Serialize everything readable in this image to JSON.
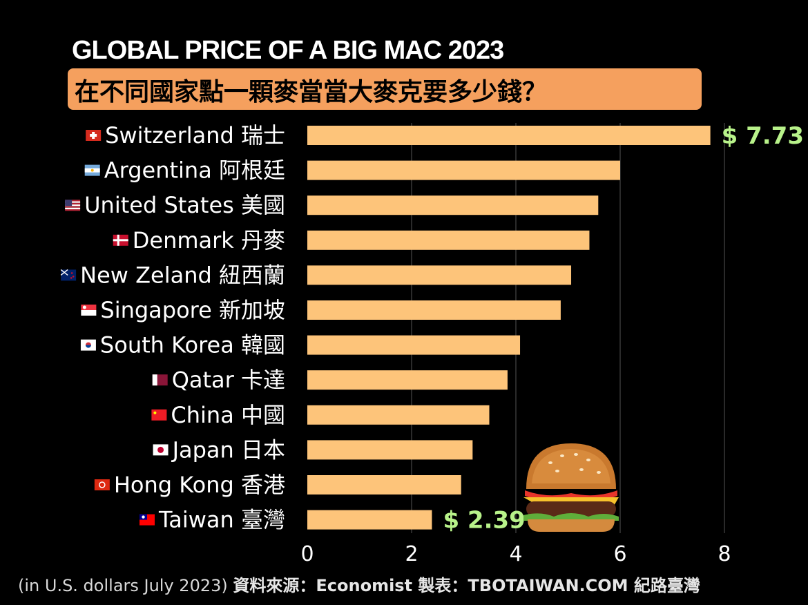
{
  "title": "GLOBAL PRICE OF A BIG MAC 2023",
  "subtitle": "在不同國家點一顆麥當當大麥克要多少錢？",
  "footer": {
    "note": "(in U.S. dollars July 2023)",
    "source": "資料來源：Economist  製表：TBOTAIWAN.COM 紀路臺灣"
  },
  "colors": {
    "bar": "#fdc47a",
    "label_value": "#b8f28a",
    "subtitle_bg": "#f5a05e",
    "grid": "#555555"
  },
  "chart_data": {
    "type": "bar",
    "orientation": "horizontal",
    "categories": [
      "Switzerland 瑞士",
      "Argentina 阿根廷",
      "United States 美國",
      "Denmark 丹麥",
      "New Zeland 紐西蘭",
      "Singapore 新加坡",
      "South Korea 韓國",
      "Qatar 卡達",
      "China 中國",
      "Japan 日本",
      "Hong Kong 香港",
      "Taiwan 臺灣"
    ],
    "flags": [
      "switzerland-flag-icon",
      "argentina-flag-icon",
      "united-states-flag-icon",
      "denmark-flag-icon",
      "new-zealand-flag-icon",
      "singapore-flag-icon",
      "south-korea-flag-icon",
      "qatar-flag-icon",
      "china-flag-icon",
      "japan-flag-icon",
      "hong-kong-flag-icon",
      "taiwan-flag-icon"
    ],
    "values": [
      7.73,
      6.0,
      5.58,
      5.41,
      5.06,
      4.86,
      4.08,
      3.84,
      3.49,
      3.17,
      2.95,
      2.39
    ],
    "data_labels": [
      "$ 7.73",
      "",
      "",
      "",
      "",
      "",
      "",
      "",
      "",
      "",
      "",
      "$ 2.39"
    ],
    "xlim": [
      0,
      8
    ],
    "xticks": [
      0,
      2,
      4,
      6,
      8
    ],
    "grid": true
  }
}
